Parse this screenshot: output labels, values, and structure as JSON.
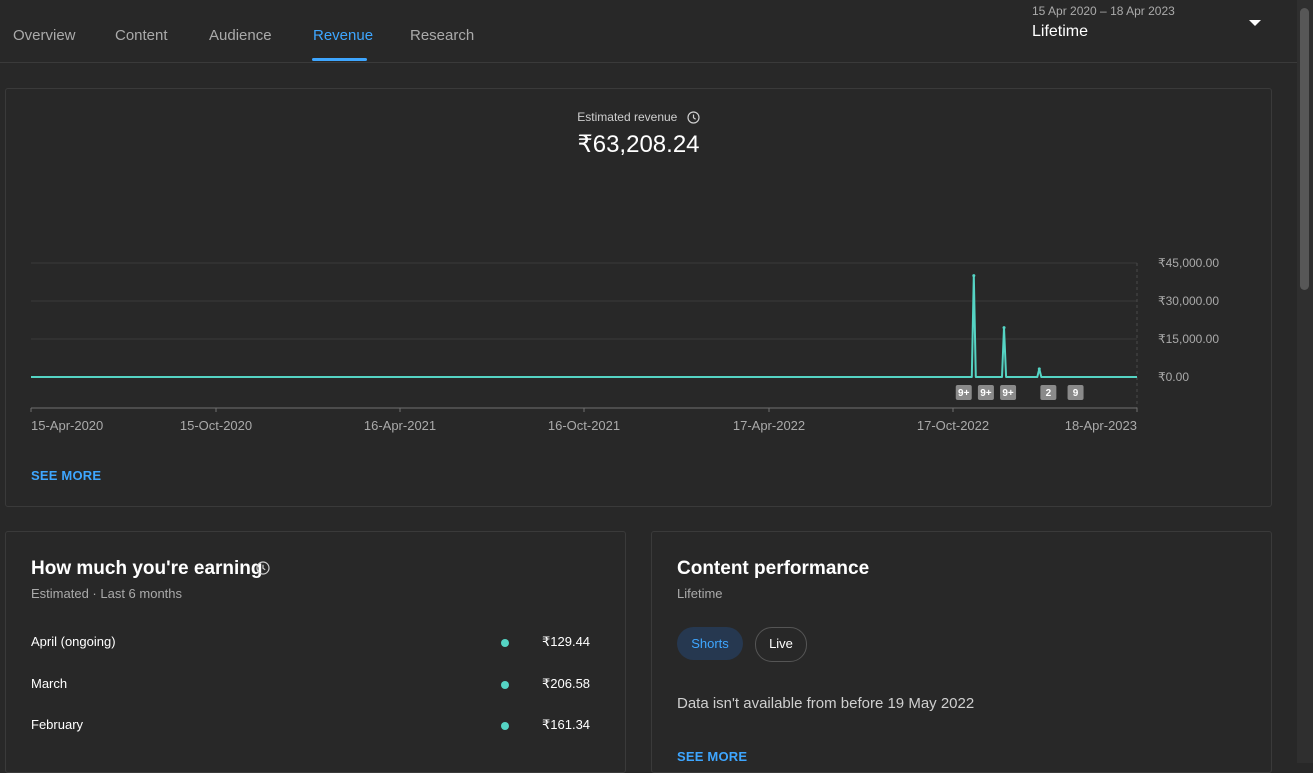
{
  "tabs": [
    {
      "label": "Overview"
    },
    {
      "label": "Content"
    },
    {
      "label": "Audience"
    },
    {
      "label": "Revenue"
    },
    {
      "label": "Research"
    }
  ],
  "active_tab": "Revenue",
  "date_picker": {
    "range": "15 Apr 2020 – 18 Apr 2023",
    "period": "Lifetime"
  },
  "revenue_card": {
    "metric_label": "Estimated revenue",
    "metric_value": "₹63,208.24",
    "see_more": "SEE MORE"
  },
  "chart_data": {
    "type": "line",
    "x_tick_labels": [
      "15-Apr-2020",
      "15-Oct-2020",
      "16-Apr-2021",
      "16-Oct-2021",
      "17-Apr-2022",
      "17-Oct-2022",
      "18-Apr-2023"
    ],
    "y_tick_labels": [
      "₹45,000.00",
      "₹30,000.00",
      "₹15,000.00",
      "₹0.00"
    ],
    "y_ticks": [
      45000,
      30000,
      15000,
      0
    ],
    "ylim": [
      0,
      45000
    ],
    "xlim": [
      "2020-04-15",
      "2023-04-18"
    ],
    "grid": true,
    "color": "#55d4c4",
    "series": [
      {
        "points": [
          [
            "2020-04-15",
            0
          ],
          [
            "2022-11-05",
            0
          ],
          [
            "2022-11-07",
            40000
          ],
          [
            "2022-11-09",
            0
          ],
          [
            "2022-12-05",
            0
          ],
          [
            "2022-12-07",
            19500
          ],
          [
            "2022-12-09",
            0
          ],
          [
            "2023-01-09",
            0
          ],
          [
            "2023-01-11",
            3200
          ],
          [
            "2023-01-13",
            0
          ],
          [
            "2023-04-18",
            0
          ]
        ]
      }
    ],
    "annotations": [
      {
        "label": "9+",
        "date": "2022-10-28"
      },
      {
        "label": "9+",
        "date": "2022-11-19"
      },
      {
        "label": "9+",
        "date": "2022-12-11"
      },
      {
        "label": "2",
        "date": "2023-01-20"
      },
      {
        "label": "9",
        "date": "2023-02-16"
      }
    ]
  },
  "earning_card": {
    "title": "How much you're earning",
    "subtitle": "Estimated · Last 6 months",
    "rows": [
      {
        "month": "April (ongoing)",
        "value": "₹129.44"
      },
      {
        "month": "March",
        "value": "₹206.58"
      },
      {
        "month": "February",
        "value": "₹161.34"
      }
    ],
    "dot_color": "#55d4c4"
  },
  "performance_card": {
    "title": "Content performance",
    "subtitle": "Lifetime",
    "chips": [
      {
        "label": "Shorts"
      },
      {
        "label": "Live"
      }
    ],
    "note": "Data isn't available from before 19 May 2022",
    "see_more": "SEE MORE"
  },
  "icons": {
    "clock": "clock-icon",
    "dropdown": "chevron-down-icon"
  }
}
